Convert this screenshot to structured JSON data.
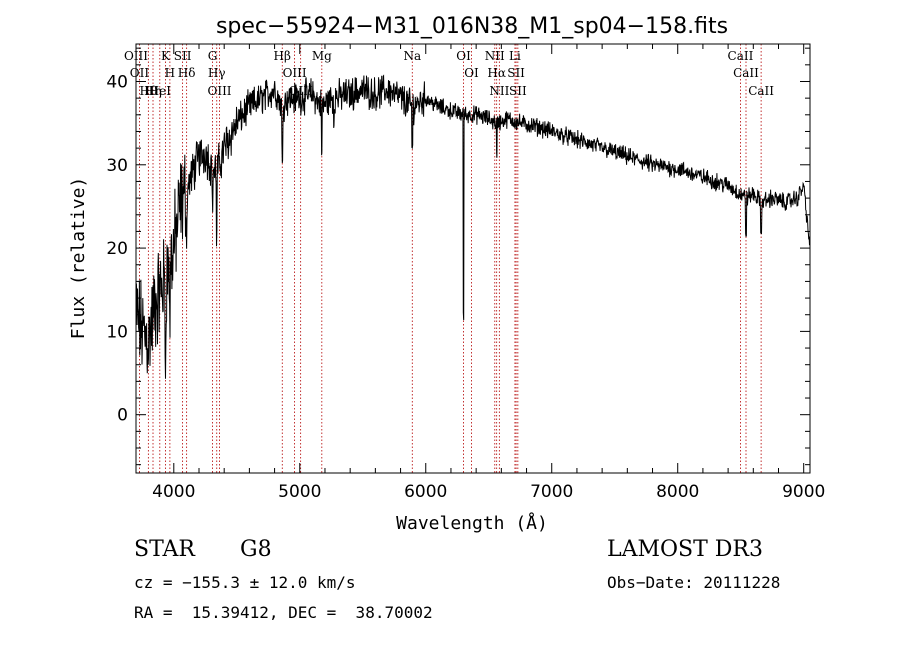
{
  "chart_data": {
    "type": "line",
    "title": "spec−55924−M31_016N38_M1_sp04−158.fits",
    "xlabel": "Wavelength (Å)",
    "ylabel": "Flux (relative)",
    "xlim": [
      3700,
      9050
    ],
    "ylim": [
      -7,
      44.5
    ],
    "xticks": [
      4000,
      5000,
      6000,
      7000,
      8000,
      9000
    ],
    "yticks": [
      0,
      10,
      20,
      30,
      40
    ],
    "spectrum_anchors": {
      "x": [
        3700,
        3750,
        3800,
        3850,
        3900,
        3950,
        4000,
        4050,
        4100,
        4150,
        4200,
        4250,
        4300,
        4340,
        4400,
        4500,
        4600,
        4700,
        4800,
        4861,
        4900,
        5000,
        5100,
        5175,
        5250,
        5400,
        5500,
        5600,
        5700,
        5800,
        5893,
        6000,
        6100,
        6200,
        6300,
        6400,
        6500,
        6563,
        6650,
        6750,
        6900,
        7000,
        7200,
        7400,
        7600,
        7800,
        8000,
        8200,
        8400,
        8542,
        8600,
        8662,
        8750,
        8850,
        8950,
        9000,
        9050
      ],
      "y": [
        12,
        10,
        9,
        13,
        15,
        17,
        20,
        25,
        27,
        29,
        31,
        31.5,
        30,
        29,
        32,
        35,
        37,
        38,
        39,
        37,
        38,
        38,
        38.5,
        37,
        38,
        38.5,
        39,
        38.5,
        39,
        38,
        37,
        38,
        37,
        36.5,
        36,
        36,
        35.5,
        35,
        35.5,
        35,
        34.5,
        34,
        33,
        32,
        31,
        30,
        29.5,
        28.5,
        27.5,
        26,
        26.5,
        25.5,
        26,
        25.5,
        26,
        27.5,
        20
      ]
    },
    "spectral_lines": [
      {
        "label": "Hθ",
        "wavelength": 3798
      },
      {
        "label": "OII",
        "wavelength": 3727
      },
      {
        "label": "OIII",
        "wavelength": 3700
      },
      {
        "label": "Hη",
        "wavelength": 3835
      },
      {
        "label": "K",
        "wavelength": 3934
      },
      {
        "label": "HeI",
        "wavelength": 3889
      },
      {
        "label": "H",
        "wavelength": 3969
      },
      {
        "label": "Hδ",
        "wavelength": 4102
      },
      {
        "label": "SII",
        "wavelength": 4070
      },
      {
        "label": "OIII",
        "wavelength": 4363
      },
      {
        "label": "Hγ",
        "wavelength": 4341
      },
      {
        "label": "G",
        "wavelength": 4308
      },
      {
        "label": "OIII",
        "wavelength": 5007
      },
      {
        "label": "OIII",
        "wavelength": 4959
      },
      {
        "label": "Hβ",
        "wavelength": 4861
      },
      {
        "label": "Mg",
        "wavelength": 5175
      },
      {
        "label": "Na",
        "wavelength": 5893
      },
      {
        "label": "OI",
        "wavelength": 6300
      },
      {
        "label": "OI",
        "wavelength": 6363
      },
      {
        "label": "Hα",
        "wavelength": 6563
      },
      {
        "label": "NII",
        "wavelength": 6548
      },
      {
        "label": "NII",
        "wavelength": 6584
      },
      {
        "label": "SII",
        "wavelength": 6717
      },
      {
        "label": "Li",
        "wavelength": 6708
      },
      {
        "label": "SII",
        "wavelength": 6731
      },
      {
        "label": "CaII",
        "wavelength": 8542
      },
      {
        "label": "CaII",
        "wavelength": 8498
      },
      {
        "label": "CaII",
        "wavelength": 8662
      }
    ]
  },
  "info": {
    "object_class": "STAR",
    "subclass": "G8",
    "survey": "LAMOST DR3",
    "cz": "cz = −155.3 ± 12.0 km/s",
    "obs_date": "Obs−Date: 20111228",
    "coords": "RA =  15.39412, DEC =  38.70002"
  }
}
